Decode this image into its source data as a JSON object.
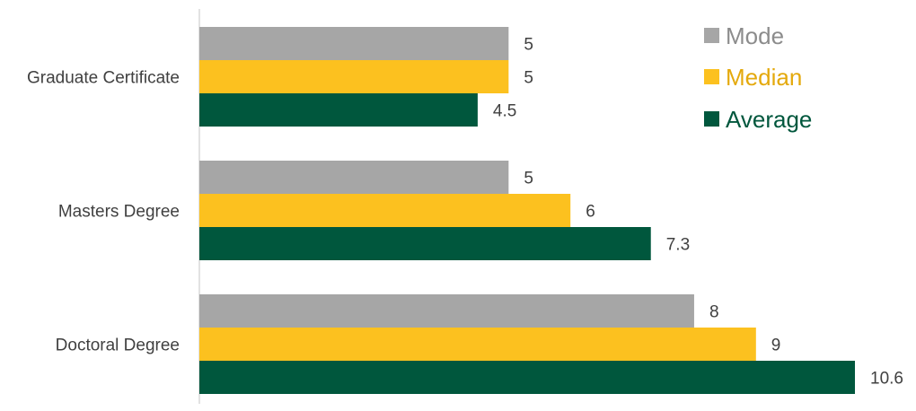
{
  "chart_data": {
    "type": "bar",
    "orientation": "horizontal",
    "categories": [
      "Graduate Certificate",
      "Masters Degree",
      "Doctoral Degree"
    ],
    "series": [
      {
        "name": "Mode",
        "color": "#A6A6A6",
        "values": [
          5,
          5,
          8
        ],
        "labels": [
          "5",
          "5",
          "8"
        ]
      },
      {
        "name": "Median",
        "color": "#FCC11F",
        "values": [
          5,
          6,
          9
        ],
        "labels": [
          "5",
          "6",
          "9"
        ]
      },
      {
        "name": "Average",
        "color": "#00573D",
        "values": [
          4.5,
          7.3,
          10.6
        ],
        "labels": [
          "4.5",
          "7.3",
          "10.6"
        ]
      }
    ],
    "xlim": [
      0,
      10.6
    ],
    "grid": false,
    "legend_position": "top-right"
  }
}
